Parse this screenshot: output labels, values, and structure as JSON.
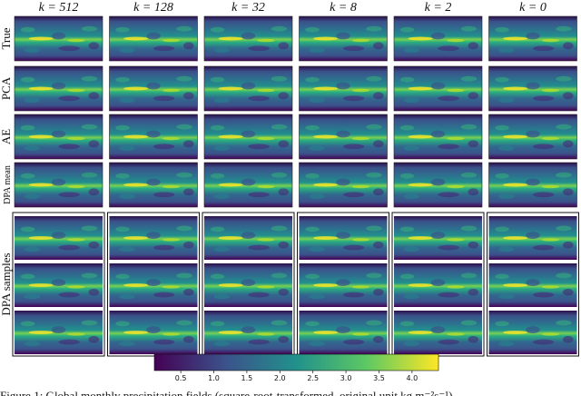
{
  "columns": [
    "k = 512",
    "k = 128",
    "k = 32",
    "k = 8",
    "k = 2",
    "k = 0"
  ],
  "rows": [
    "True",
    "PCA",
    "AE",
    "DPA mean"
  ],
  "samples_label": "DPA samples",
  "colorbar": {
    "lim": [
      0.1,
      4.4
    ],
    "ticks": [
      0.5,
      {
        "value": 1,
        "label": "1.0"
      },
      1.5,
      {
        "value": 2,
        "label": "2.0"
      },
      2.5,
      {
        "value": 3,
        "label": "3.0"
      },
      3.5,
      {
        "value": 4,
        "label": "4.0"
      }
    ]
  },
  "caption": "Figure 1: Global monthly precipitation fields (square-root-transformed, original unit kg m⁻²s⁻¹)"
}
